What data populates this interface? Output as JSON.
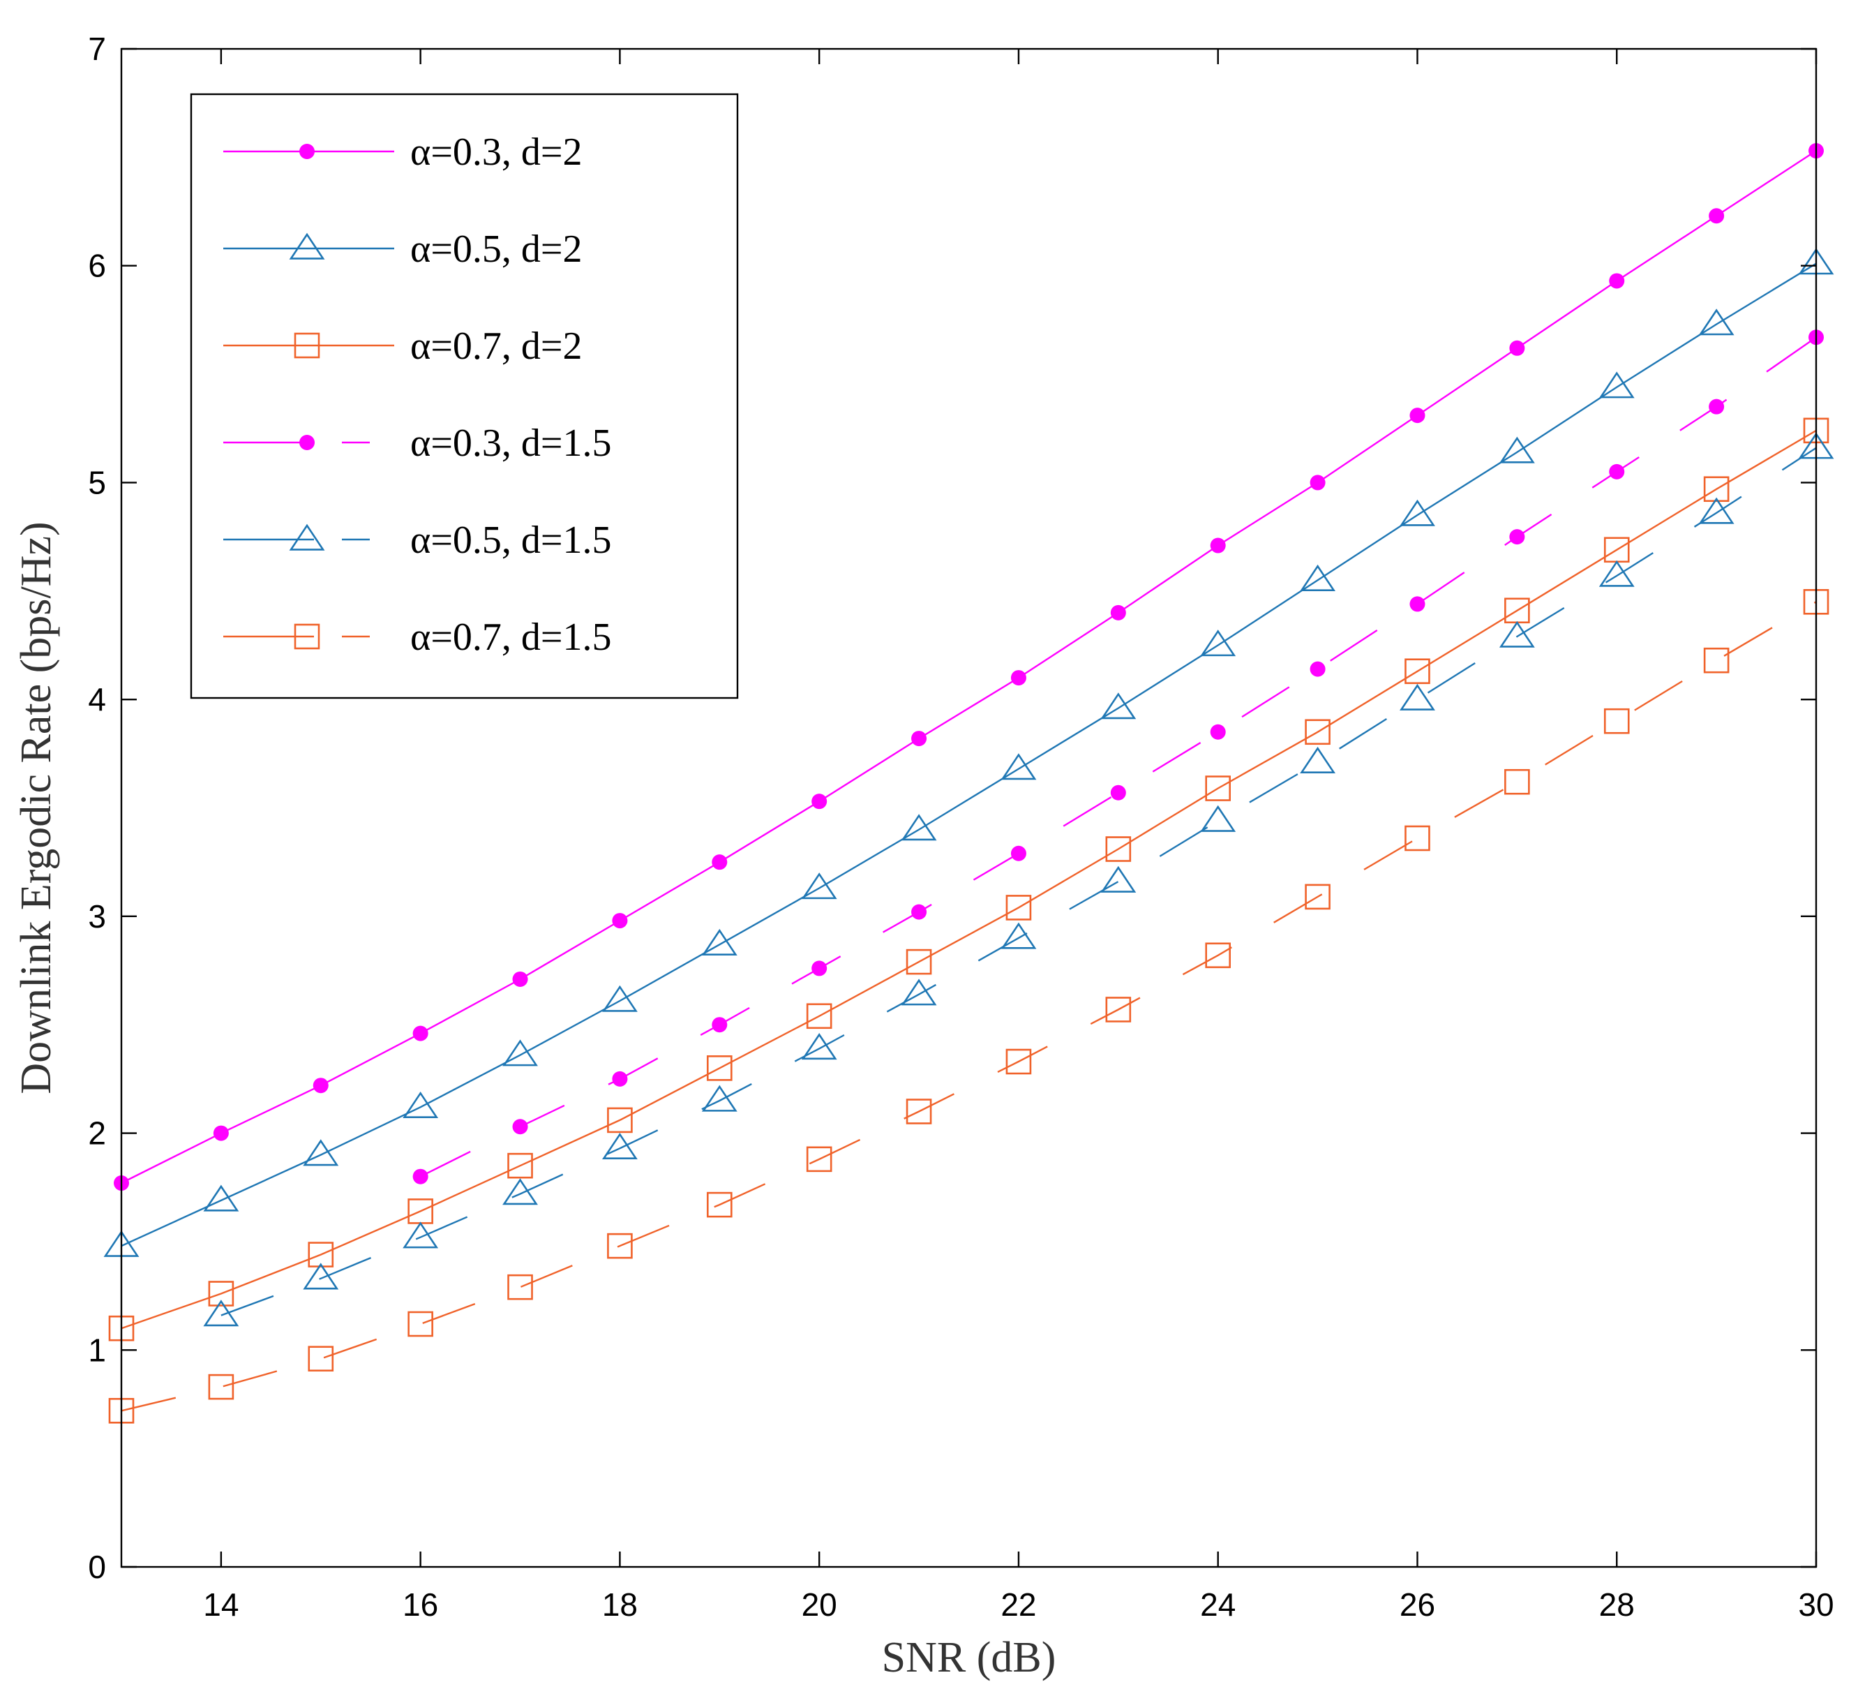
{
  "chart_data": {
    "type": "line",
    "xlabel": "SNR (dB)",
    "ylabel": "Downlink Ergodic Rate (bps/Hz)",
    "xlim": [
      13,
      30
    ],
    "ylim": [
      0,
      7
    ],
    "xticks": [
      "14",
      "16",
      "18",
      "20",
      "22",
      "24",
      "26",
      "28",
      "30"
    ],
    "yticks": [
      "0",
      "1",
      "2",
      "3",
      "4",
      "5",
      "6",
      "7"
    ],
    "grid": false,
    "legend_position": "top-left",
    "series": [
      {
        "name": "α=0.3, d=2",
        "color": "#ff00ff",
        "marker": "filled-circle",
        "line": "solid",
        "x": [
          13,
          14,
          15,
          16,
          17,
          18,
          19,
          20,
          21,
          22,
          23,
          24,
          25,
          26,
          27,
          28,
          29,
          30
        ],
        "y": [
          1.77,
          2.0,
          2.22,
          2.46,
          2.71,
          2.98,
          3.25,
          3.53,
          3.82,
          4.1,
          4.4,
          4.71,
          5.0,
          5.31,
          5.62,
          5.93,
          6.23,
          6.53
        ]
      },
      {
        "name": "α=0.5, d=2",
        "color": "#1f77b4",
        "marker": "open-triangle",
        "line": "solid",
        "x": [
          13,
          14,
          15,
          16,
          17,
          18,
          19,
          20,
          21,
          22,
          23,
          24,
          25,
          26,
          27,
          28,
          29,
          30
        ],
        "y": [
          1.48,
          1.69,
          1.9,
          2.12,
          2.36,
          2.61,
          2.87,
          3.13,
          3.4,
          3.68,
          3.96,
          4.25,
          4.55,
          4.85,
          5.14,
          5.44,
          5.73,
          6.01
        ]
      },
      {
        "name": "α=0.7, d=2",
        "color": "#f0622a",
        "marker": "open-square",
        "line": "solid",
        "x": [
          13,
          14,
          15,
          16,
          17,
          18,
          19,
          20,
          21,
          22,
          23,
          24,
          25,
          26,
          27,
          28,
          29,
          30
        ],
        "y": [
          1.1,
          1.26,
          1.44,
          1.64,
          1.85,
          2.06,
          2.3,
          2.54,
          2.79,
          3.04,
          3.31,
          3.59,
          3.85,
          4.13,
          4.41,
          4.69,
          4.97,
          5.24
        ]
      },
      {
        "name": "α=0.3, d=1.5",
        "color": "#ff00ff",
        "marker": "filled-circle",
        "line": "dashed",
        "x": [
          16,
          17,
          18,
          19,
          20,
          21,
          22,
          23,
          24,
          25,
          26,
          27,
          28,
          29,
          30
        ],
        "y": [
          1.8,
          2.03,
          2.25,
          2.5,
          2.76,
          3.02,
          3.29,
          3.57,
          3.85,
          4.14,
          4.44,
          4.75,
          5.05,
          5.35,
          5.67
        ]
      },
      {
        "name": "α=0.5, d=1.5",
        "color": "#1f77b4",
        "marker": "open-triangle",
        "line": "dashed",
        "x": [
          14,
          15,
          16,
          17,
          18,
          19,
          20,
          21,
          22,
          23,
          24,
          25,
          26,
          27,
          28,
          29,
          30
        ],
        "y": [
          1.16,
          1.33,
          1.52,
          1.72,
          1.93,
          2.15,
          2.39,
          2.64,
          2.9,
          3.16,
          3.44,
          3.71,
          4.0,
          4.29,
          4.57,
          4.86,
          5.16
        ]
      },
      {
        "name": "α=0.7, d=1.5",
        "color": "#f0622a",
        "marker": "open-square",
        "line": "dashed",
        "x": [
          13,
          14,
          15,
          16,
          17,
          18,
          19,
          20,
          21,
          22,
          23,
          24,
          25,
          26,
          27,
          28,
          29,
          30
        ],
        "y": [
          0.72,
          0.83,
          0.96,
          1.12,
          1.29,
          1.48,
          1.67,
          1.88,
          2.1,
          2.33,
          2.57,
          2.82,
          3.09,
          3.36,
          3.62,
          3.9,
          4.18,
          4.45
        ]
      }
    ]
  }
}
